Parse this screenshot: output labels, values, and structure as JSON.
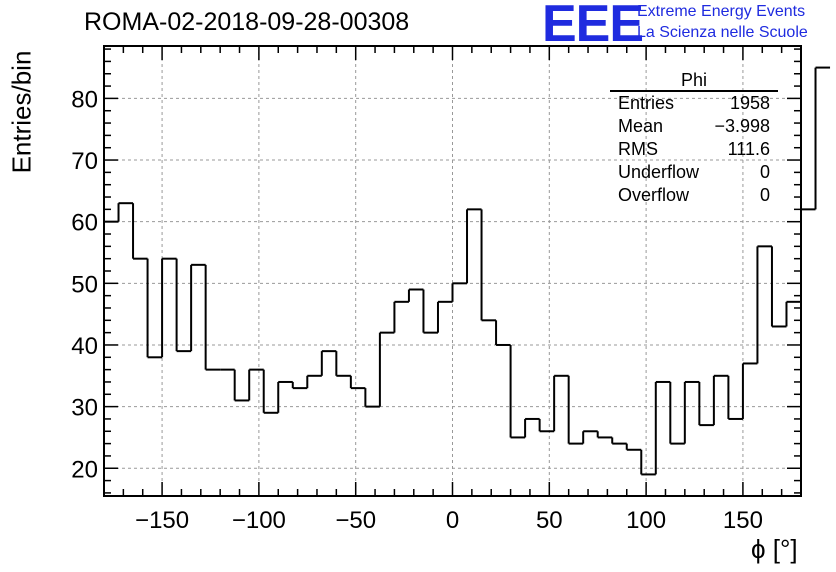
{
  "title": "ROMA-02-2018-09-28-00308",
  "logo": {
    "mark": "EEE",
    "line1": "Extreme Energy Events",
    "line2": "La Scienza nelle Scuole"
  },
  "stats": {
    "name": "Phi",
    "rows": [
      {
        "label": "Entries",
        "value": "1958"
      },
      {
        "label": "Mean",
        "value": "−3.998"
      },
      {
        "label": "RMS",
        "value": "111.6"
      },
      {
        "label": "Underflow",
        "value": "0"
      },
      {
        "label": "Overflow",
        "value": "0"
      }
    ]
  },
  "chart_data": {
    "type": "histogram",
    "title": "ROMA-02-2018-09-28-00308",
    "xlabel": "ϕ [°]",
    "ylabel": "Entries/bin",
    "xlim": [
      -180,
      180
    ],
    "ylim": [
      15.5,
      88.5
    ],
    "xticks": [
      -150,
      -100,
      -50,
      0,
      50,
      100,
      150
    ],
    "xtick_labels": [
      "−150",
      "−100",
      "−50",
      "0",
      "50",
      "100",
      "150"
    ],
    "yticks": [
      20,
      30,
      40,
      50,
      60,
      70,
      80
    ],
    "grid": true,
    "bin_width": 7.5,
    "bin_edges_start": -180,
    "values": [
      60,
      63,
      54,
      38,
      54,
      39,
      53,
      36,
      36,
      31,
      36,
      29,
      34,
      33,
      35,
      39,
      35,
      33,
      30,
      42,
      47,
      49,
      42,
      47,
      50,
      62,
      44,
      40,
      25,
      28,
      26,
      35,
      24,
      26,
      25,
      24,
      23,
      19,
      34,
      24,
      34,
      27,
      35,
      28,
      37,
      56,
      43,
      47,
      62,
      85
    ]
  }
}
